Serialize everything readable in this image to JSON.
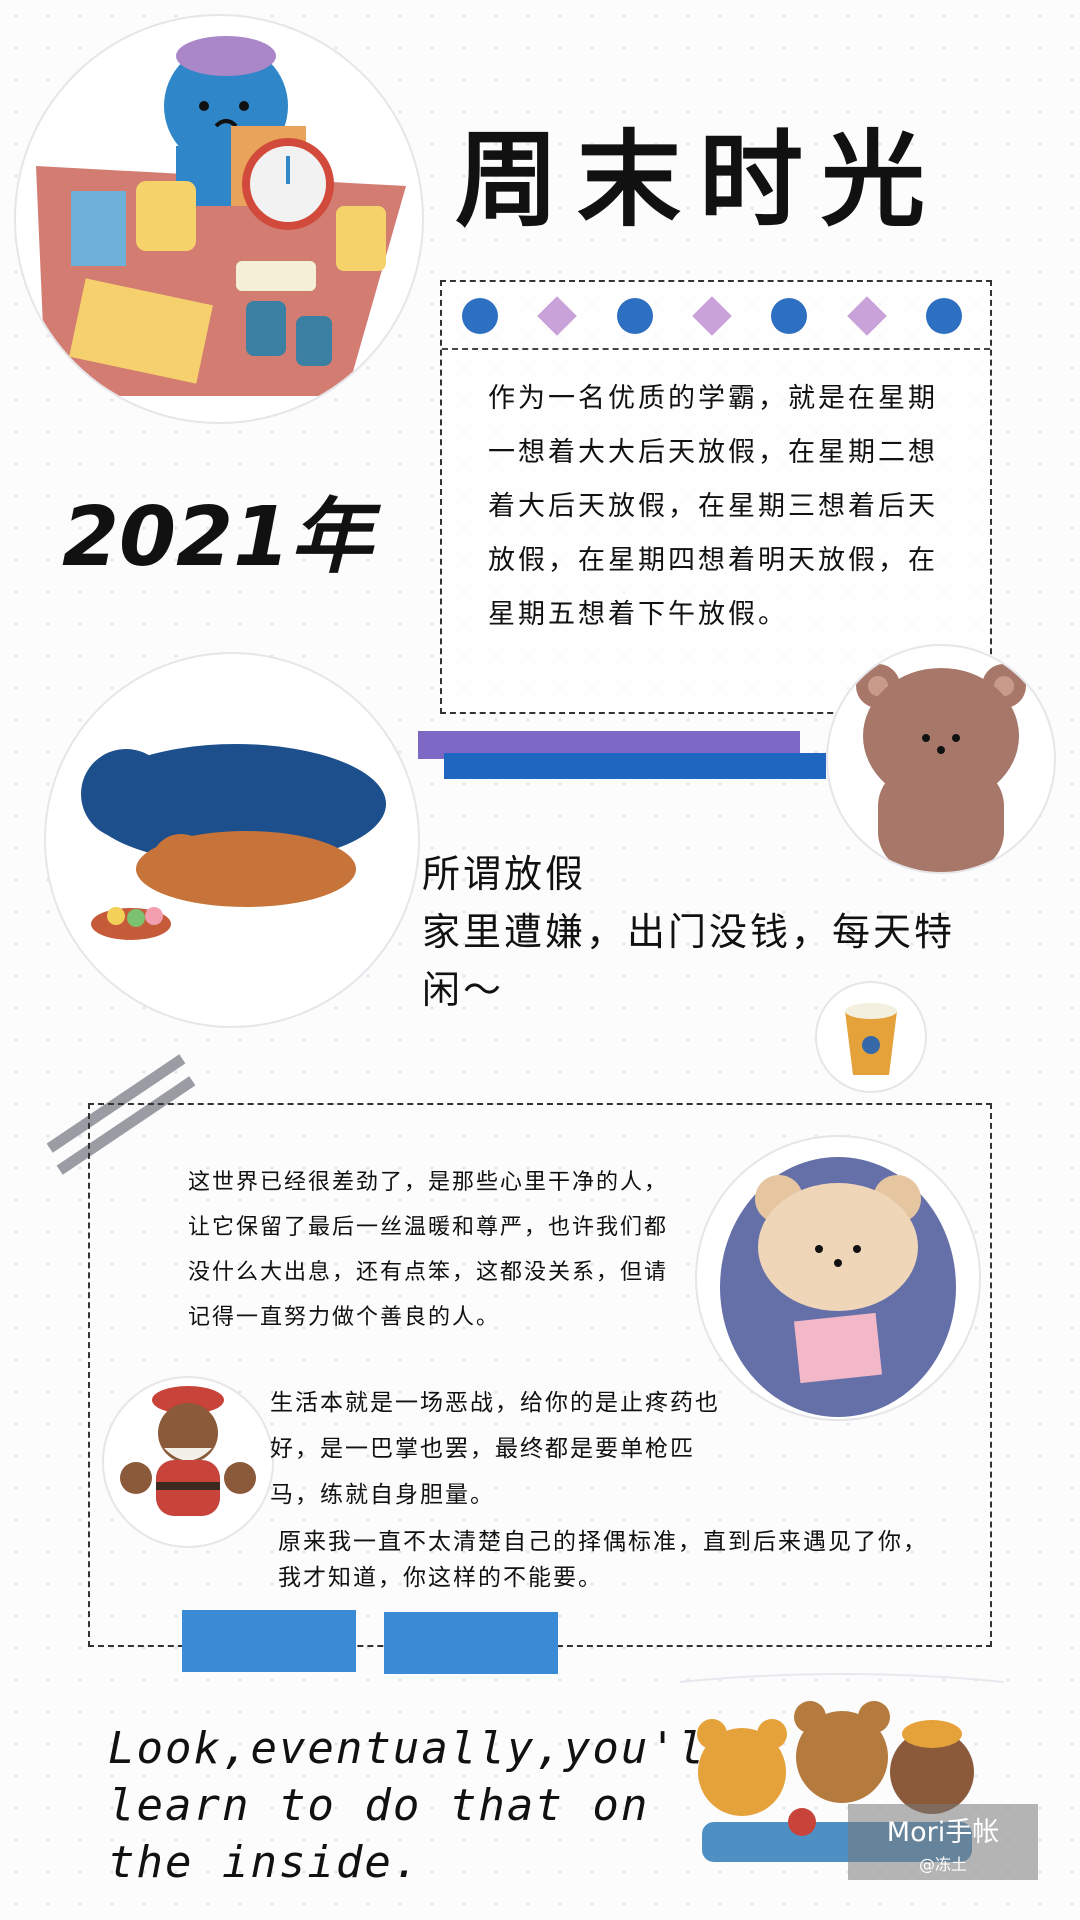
{
  "title": "周末时光",
  "year": "2021年",
  "paragraph1": "作为一名优质的学霸，就是在星期一想着大大后天放假，在星期二想着大后天放假，在星期三想着后天放假，在星期四想着明天放假，在星期五想着下午放假。",
  "vacation": {
    "line1": "所谓放假",
    "line2": "家里遭嫌，出门没钱，每天特闲～"
  },
  "paragraph2": "这世界已经很差劲了，是那些心里干净的人，让它保留了最后一丝温暖和尊严，也许我们都没什么大出息，还有点笨，这都没关系，但请记得一直努力做个善良的人。",
  "paragraph3": "生活本就是一场恶战，给你的是止疼药也好，是一巴掌也罢，最终都是要单枪匹马，练就自身胆量。",
  "paragraph4": "原来我一直不太清楚自己的择偶标准，直到后来遇见了你，我才知道，你这样的不能要。",
  "quote": {
    "line1": "Look,eventually,you'll",
    "line2": "learn to do that on",
    "line3": "the inside."
  },
  "watermark": {
    "brand": "Mori手帐",
    "author": "@冻土"
  },
  "colors": {
    "accent_blue": "#1e66bf",
    "accent_purple": "#7d68c6",
    "light_blue": "#3a8ad6",
    "lavender": "#c8a2d8"
  }
}
